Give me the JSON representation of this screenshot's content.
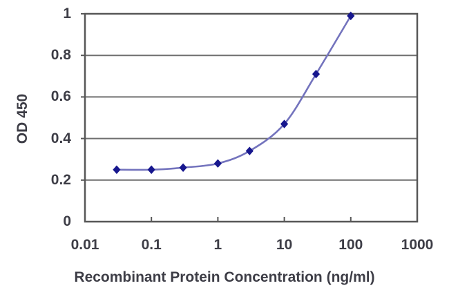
{
  "chart_data": {
    "type": "line",
    "title": "",
    "xlabel": "Recombinant Protein Concentration (ng/ml)",
    "ylabel": "OD 450",
    "x_scale": "log",
    "xlim": [
      0.01,
      1000
    ],
    "ylim": [
      0,
      1
    ],
    "x_tick_labels": [
      "0.01",
      "0.1",
      "1",
      "10",
      "100",
      "1000"
    ],
    "x_tick_values": [
      0.01,
      0.1,
      1,
      10,
      100,
      1000
    ],
    "y_tick_labels": [
      "0",
      "0.2",
      "0.4",
      "0.6",
      "0.8",
      "1"
    ],
    "y_tick_values": [
      0,
      0.2,
      0.4,
      0.6,
      0.8,
      1
    ],
    "grid": "horizontal",
    "legend_position": "none",
    "marker": "diamond",
    "series": [
      {
        "name": "OD 450",
        "x": [
          0.03,
          0.1,
          0.3,
          1,
          3,
          10,
          30,
          100
        ],
        "y": [
          0.25,
          0.25,
          0.26,
          0.28,
          0.34,
          0.47,
          0.71,
          0.99
        ]
      }
    ],
    "colors": {
      "line": "#7373bd",
      "marker": "#17178e",
      "grid": "#6f6f6f",
      "axis": "#575757",
      "text": "#3d3d46",
      "background": "#ffffff"
    }
  }
}
